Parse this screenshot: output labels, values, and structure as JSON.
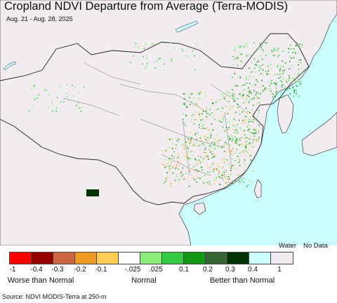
{
  "header": {
    "title": "Cropland NDVI Departure from Average (Terra-MODIS)",
    "date_range": "Aug. 21 - Aug. 28, 2025"
  },
  "legend": {
    "water_label": "Water",
    "nodata_label": "No Data",
    "classes": [
      {
        "color": "#ff0000"
      },
      {
        "color": "#990000"
      },
      {
        "color": "#cc6644"
      },
      {
        "color": "#ee9922"
      },
      {
        "color": "#ffcc55"
      },
      {
        "color": "#ffffff"
      },
      {
        "color": "#88ee77"
      },
      {
        "color": "#33cc44"
      },
      {
        "color": "#119911"
      },
      {
        "color": "#336633"
      },
      {
        "color": "#003300"
      },
      {
        "color": "#ccffff"
      },
      {
        "color": "#eeeaee"
      }
    ],
    "ticks": [
      "-1",
      "-0.4",
      "-0.3",
      "-0.2",
      "-0.1",
      "-.025",
      ".025",
      "0.1",
      "0.2",
      "0.3",
      "0.4",
      "1"
    ],
    "category_labels": [
      "Worse than Normal",
      "Normal",
      "Better than Normal"
    ]
  },
  "map": {
    "land_color": "#f0ecf0",
    "water_color": "#ccffff",
    "border_color": "#222222"
  },
  "footer": {
    "source": "Source: NDVI MODIS-Terra at 250-m"
  }
}
